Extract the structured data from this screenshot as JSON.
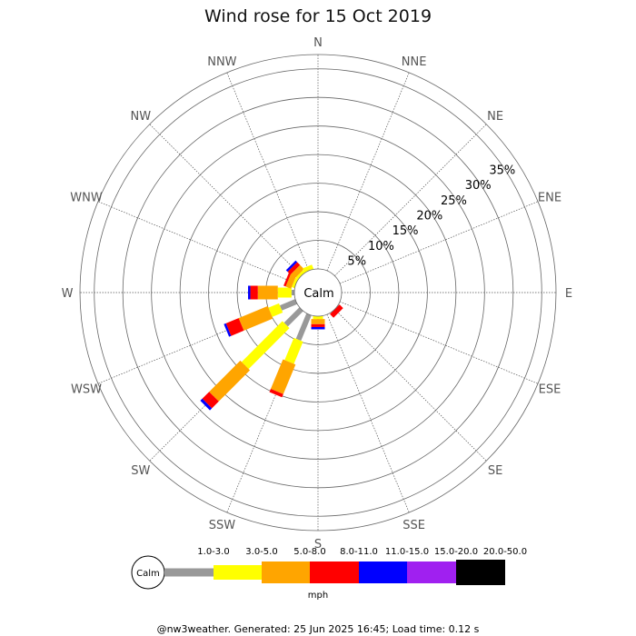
{
  "chart_data": {
    "type": "wind-rose",
    "title": "Wind rose for 15 Oct 2019",
    "center_label": "Calm",
    "unit_label": "mph",
    "directions": [
      "N",
      "NNE",
      "NE",
      "ENE",
      "E",
      "ESE",
      "SE",
      "SSE",
      "S",
      "SSW",
      "SW",
      "WSW",
      "W",
      "WNW",
      "NW",
      "NNW"
    ],
    "ring_ticks": [
      5,
      10,
      15,
      20,
      25,
      30,
      35
    ],
    "ring_tick_labels": [
      "5%",
      "10%",
      "15%",
      "20%",
      "25%",
      "30%",
      "35%"
    ],
    "rmax": 37.5,
    "speed_bins": [
      {
        "label": "1.0-3.0",
        "color": "#999999"
      },
      {
        "label": "3.0-5.0",
        "color": "#ffff00"
      },
      {
        "label": "5.0-8.0",
        "color": "#ffa500"
      },
      {
        "label": "8.0-11.0",
        "color": "#ff0000"
      },
      {
        "label": "11.0-15.0",
        "color": "#0000ff"
      },
      {
        "label": "15.0-20.0",
        "color": "#a020f0"
      },
      {
        "label": "20.0-50.0",
        "color": "#000000"
      }
    ],
    "series_units": "cumulative percent per direction",
    "bars": [
      {
        "direction": "N",
        "cum": [
          0,
          0,
          0,
          0,
          0,
          0,
          0
        ]
      },
      {
        "direction": "NNE",
        "cum": [
          0,
          0,
          0,
          0,
          0,
          0,
          0
        ]
      },
      {
        "direction": "NE",
        "cum": [
          0,
          0,
          0,
          0,
          0,
          0,
          0
        ]
      },
      {
        "direction": "ENE",
        "cum": [
          0,
          0,
          0,
          0,
          0,
          0,
          0
        ]
      },
      {
        "direction": "E",
        "cum": [
          0,
          0,
          0,
          0,
          0,
          0,
          0
        ]
      },
      {
        "direction": "ESE",
        "cum": [
          0,
          0,
          0,
          0,
          0,
          0,
          0
        ]
      },
      {
        "direction": "SE",
        "cum": [
          0,
          0,
          0,
          0.9,
          0.9,
          0.9,
          0.9
        ]
      },
      {
        "direction": "SSE",
        "cum": [
          0,
          0,
          0,
          0,
          0,
          0,
          0
        ]
      },
      {
        "direction": "S",
        "cum": [
          0,
          0.5,
          1.4,
          1.9,
          2.3,
          2.3,
          2.3
        ]
      },
      {
        "direction": "SSW",
        "cum": [
          4.8,
          9.0,
          14.6,
          15.2,
          15.2,
          15.2,
          15.2
        ]
      },
      {
        "direction": "SW",
        "cum": [
          3.8,
          13.9,
          21.6,
          23.3,
          23.8,
          23.8,
          23.8
        ]
      },
      {
        "direction": "WSW",
        "cum": [
          2.9,
          4.9,
          10.4,
          12.8,
          13.1,
          13.1,
          13.1
        ]
      },
      {
        "direction": "W",
        "cum": [
          0.5,
          2.9,
          6.4,
          7.7,
          8.1,
          8.1,
          8.1
        ]
      },
      {
        "direction": "WNW",
        "cum": [
          0,
          0.5,
          1.5,
          1.8,
          1.8,
          1.8,
          1.8
        ]
      },
      {
        "direction": "NW",
        "cum": [
          0,
          0.5,
          1.5,
          2.2,
          2.5,
          2.5,
          2.5
        ]
      },
      {
        "direction": "NNW",
        "cum": [
          0,
          0.8,
          0.8,
          0.8,
          0.8,
          0.8,
          0.8
        ]
      }
    ]
  },
  "footer": "@nw3weather. Generated: 25 Jun 2025 16:45; Load time: 0.12 s"
}
